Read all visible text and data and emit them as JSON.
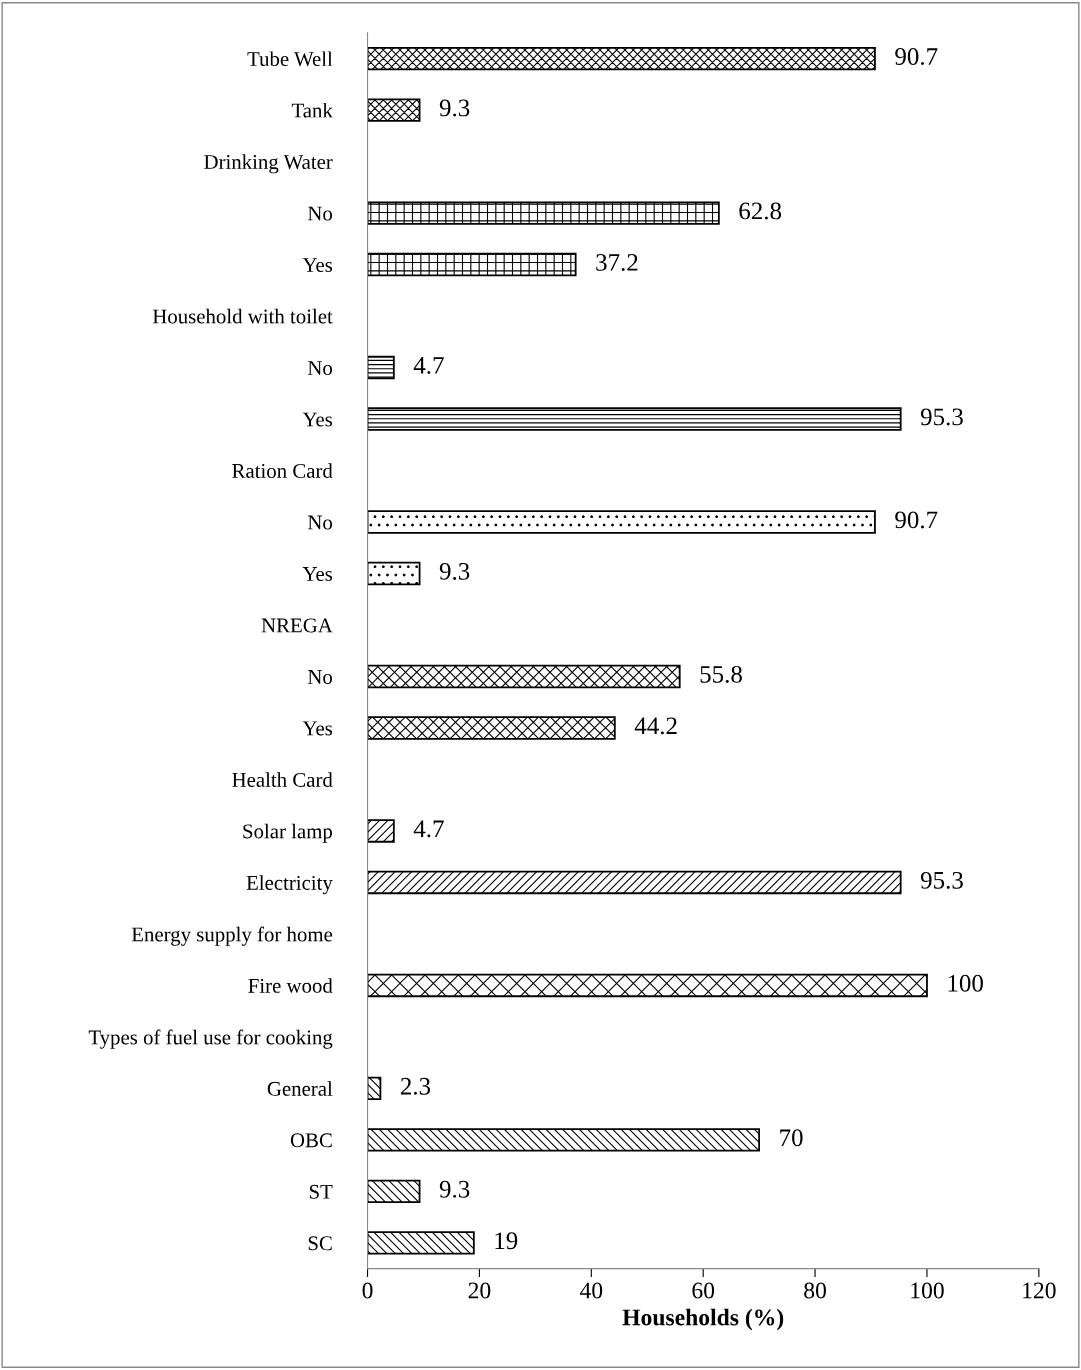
{
  "chart_data": {
    "type": "bar",
    "orientation": "horizontal",
    "xlabel": "Households (%)",
    "categories": [
      "Tube Well",
      "Tank",
      "Drinking Water",
      "No",
      "Yes",
      "Household with toilet",
      "No",
      "Yes",
      "Ration Card",
      "No",
      "Yes",
      "NREGA",
      "No",
      "Yes",
      "Health Card",
      "Solar lamp",
      "Electricity",
      "Energy supply for home",
      "Fire wood",
      "Types of fuel use for cooking",
      "General",
      "OBC",
      "ST",
      "SC"
    ],
    "values": [
      90.7,
      9.3,
      null,
      62.8,
      37.2,
      null,
      4.7,
      95.3,
      null,
      90.7,
      9.3,
      null,
      55.8,
      44.2,
      null,
      4.7,
      95.3,
      null,
      100,
      null,
      2.3,
      70,
      9.3,
      19
    ],
    "color": "#000000",
    "xlim": [
      0,
      120
    ],
    "xticks": [
      0,
      20,
      40,
      60,
      80,
      100,
      120
    ],
    "data_labels": true,
    "grid": false,
    "legend": false
  }
}
